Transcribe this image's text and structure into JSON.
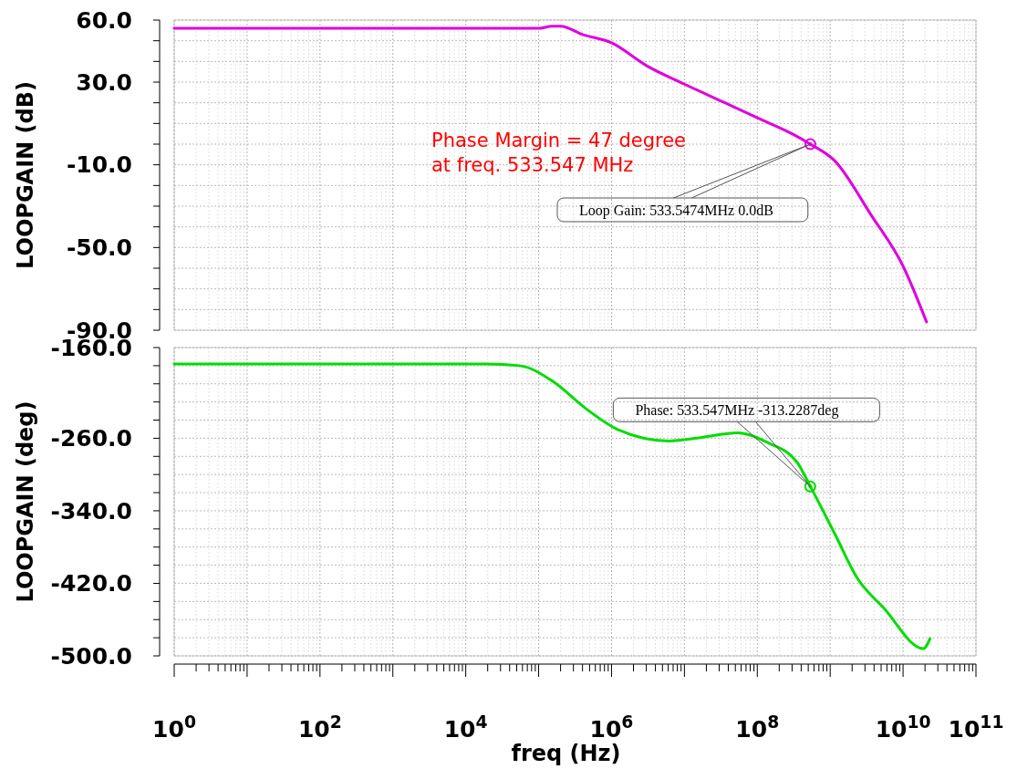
{
  "chart_data": [
    {
      "type": "line",
      "ylabel": "LOOPGAIN (dB)",
      "xlim": [
        1,
        100000000000
      ],
      "ylim": [
        -90,
        60
      ],
      "log": "x",
      "grid": true,
      "tick_labels": "y",
      "line_style": "solid",
      "marker": "none",
      "xticks": [
        {
          "value": 1,
          "label": null
        },
        {
          "value": 10,
          "label": null
        },
        {
          "value": 100,
          "label": null
        },
        {
          "value": 1000,
          "label": null
        },
        {
          "value": 10000,
          "label": null
        },
        {
          "value": 100000,
          "label": null
        },
        {
          "value": 1000000,
          "label": null
        },
        {
          "value": 10000000,
          "label": null
        },
        {
          "value": 100000000,
          "label": null
        },
        {
          "value": 1000000000,
          "label": null
        },
        {
          "value": 10000000000,
          "label": null
        },
        {
          "value": 100000000000,
          "label": null
        }
      ],
      "yticks": [
        {
          "value": 60,
          "label": "60.0"
        },
        {
          "value": 50,
          "label": null
        },
        {
          "value": 40,
          "label": null
        },
        {
          "value": 30,
          "label": "30.0"
        },
        {
          "value": 20,
          "label": null
        },
        {
          "value": 10,
          "label": null
        },
        {
          "value": 0,
          "label": null
        },
        {
          "value": -10,
          "label": "-10.0"
        },
        {
          "value": -20,
          "label": null
        },
        {
          "value": -30,
          "label": null
        },
        {
          "value": -40,
          "label": null
        },
        {
          "value": -50,
          "label": "-50.0"
        },
        {
          "value": -60,
          "label": null
        },
        {
          "value": -70,
          "label": null
        },
        {
          "value": -80,
          "label": null
        },
        {
          "value": -90,
          "label": "-90.0"
        }
      ],
      "series": [
        {
          "color": "#e000e0",
          "x": [
            1,
            10,
            100,
            1000,
            10000,
            100000,
            150000,
            200000,
            400000,
            1000000,
            3000000,
            10000000,
            36000000,
            112000000,
            300000000,
            533547400,
            1150000000,
            3600000000,
            10000000000,
            21000000000
          ],
          "values": [
            56,
            56,
            56,
            56,
            56,
            56,
            57,
            57,
            53,
            49,
            38,
            29,
            20,
            12,
            5,
            0,
            -8,
            -34,
            -59,
            -86
          ]
        },
        {
          "type": "scatter",
          "marker": "circle",
          "color": "#e000e0",
          "x": [
            533547400
          ],
          "values": [
            0
          ]
        }
      ],
      "annotations": [
        "Phase Margin = 47 degree\nat freq. 533.547 MHz",
        "Loop Gain: 533.5474MHz 0.0dB"
      ]
    },
    {
      "type": "line",
      "xlabel": "freq (Hz)",
      "ylabel": "LOOPGAIN (deg)",
      "xlim": [
        1,
        100000000000
      ],
      "ylim": [
        -500,
        -160
      ],
      "log": "x",
      "grid": true,
      "line_style": "solid",
      "marker": "none",
      "xticks": [
        {
          "value": 1,
          "label": "10$^{0}$"
        },
        {
          "value": 10,
          "label": null
        },
        {
          "value": 100,
          "label": "10$^{2}$"
        },
        {
          "value": 1000,
          "label": null
        },
        {
          "value": 10000,
          "label": "10$^{4}$"
        },
        {
          "value": 100000,
          "label": null
        },
        {
          "value": 1000000,
          "label": "10$^{6}$"
        },
        {
          "value": 10000000,
          "label": null
        },
        {
          "value": 100000000,
          "label": "10$^{8}$"
        },
        {
          "value": 1000000000,
          "label": null
        },
        {
          "value": 10000000000,
          "label": "10$^{10}$"
        },
        {
          "value": 100000000000,
          "label": "10$^{11}$"
        }
      ],
      "yticks": [
        {
          "value": -160,
          "label": "-160.0"
        },
        {
          "value": -180,
          "label": null
        },
        {
          "value": -200,
          "label": null
        },
        {
          "value": -220,
          "label": null
        },
        {
          "value": -240,
          "label": null
        },
        {
          "value": -260,
          "label": "-260.0"
        },
        {
          "value": -280,
          "label": null
        },
        {
          "value": -300,
          "label": null
        },
        {
          "value": -320,
          "label": null
        },
        {
          "value": -340,
          "label": "-340.0"
        },
        {
          "value": -360,
          "label": null
        },
        {
          "value": -380,
          "label": null
        },
        {
          "value": -400,
          "label": null
        },
        {
          "value": -420,
          "label": "-420.0"
        },
        {
          "value": -440,
          "label": null
        },
        {
          "value": -460,
          "label": null
        },
        {
          "value": -480,
          "label": null
        },
        {
          "value": -500,
          "label": "-500.0"
        }
      ],
      "series": [
        {
          "color": "#00dd00",
          "x": [
            1,
            10,
            100,
            1000,
            10000,
            19000,
            55000,
            155000,
            440000,
            1260000,
            6000000,
            17400000,
            54000000,
            141000000,
            355000000,
            533547000,
            1150000000,
            2340000000,
            5400000000,
            19000000000,
            23400000000
          ],
          "values": [
            -178,
            -178,
            -178,
            -178,
            -178,
            -178,
            -180,
            -197,
            -227,
            -251,
            -263,
            -259,
            -254,
            -265,
            -287,
            -313,
            -365,
            -414,
            -447,
            -492,
            -481
          ]
        },
        {
          "type": "scatter",
          "marker": "circle",
          "color": "#00dd00",
          "x": [
            533547000
          ],
          "values": [
            -313.2287
          ]
        }
      ],
      "annotations": [
        "Phase: 533.547MHz -313.2287deg"
      ]
    }
  ]
}
